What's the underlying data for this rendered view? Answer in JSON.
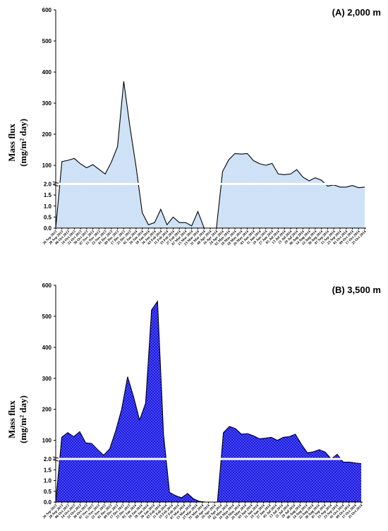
{
  "chart_data": [
    {
      "type": "area",
      "title": "(A) 2,000 m",
      "ylabel_line1": "Mass flux",
      "ylabel_line2": "(mg/m² day)",
      "fill_color": "#c9dff5",
      "stroke_color": "#000000",
      "upper_ticks": [
        "100",
        "200",
        "300",
        "400",
        "500",
        "600"
      ],
      "lower_ticks": [
        "0.0",
        "0.5",
        "1.0",
        "1.5",
        "2.0"
      ],
      "upper_ylim": [
        40,
        600
      ],
      "lower_ylim": [
        0,
        2.0
      ],
      "x": [
        "20 Sep 2013",
        "28 Sep 2013",
        "06 Oct 2013",
        "14 Oct 2013",
        "22 Oct 2013",
        "30 Oct 2013",
        "07 Nov 2013",
        "15 Nov 2013",
        "23 Nov 2013",
        "01 Dec 2013",
        "09 Dec 2013",
        "17 Dec 2013",
        "25 Dec 2013",
        "02 Jan 2014",
        "10 Jan 2014",
        "18 Jan 2014",
        "26 Jan 2014",
        "03 Feb 2014",
        "11 Feb 2014",
        "19 Feb 2014",
        "27 Feb 2014",
        "07 Mar 2014",
        "15 Mar 2014",
        "23 Mar 2014",
        "31 Mar 2014",
        "08 Apr 2014",
        "16 Apr 2014",
        "24 Apr 2014",
        "02 May 2014",
        "10 May 2014",
        "18 May 2014",
        "26 May 2014",
        "03 Jun 2014",
        "11 Jun 2014",
        "19 Jun 2014",
        "27 Jun 2014",
        "05 Jul 2014",
        "13 Jul 2014",
        "21 Jul 2014",
        "29 Jul 2014",
        "06 Aug 2014",
        "14 Aug 2014",
        "22 Aug 2014",
        "30 Aug 2014",
        "07 Sep 2014",
        "15 Sep 2014",
        "23 Sep 2014",
        "01 Oct 2014",
        "09 Oct 2014",
        "17 Oct 2014",
        "25 Oct 2014"
      ],
      "tick_labels": [
        "20 Sep 2013",
        "28 Sep 2013",
        "06 Oct 2013",
        "14 Oct 2013",
        "22 Oct 2013",
        "30 Oct 2013",
        "07 Nov 2013",
        "15 Nov 2013",
        "23 Nov 2013",
        "01 Dec 2013",
        "09 Dec 2013",
        "17 Dec 2013",
        "25 Dec 2013",
        "02 Jan 2014",
        "10 Jan 2014",
        "18 Jan 2014",
        "26 Jan 2014",
        "03 Feb 2014",
        "11 Feb 2014",
        "19 Feb 2014",
        "27 Feb 2014",
        "07 Mar 2014",
        "15 Mar 2014",
        "23 Mar 2014",
        "31 Mar 2014",
        "08 Apr 2014",
        "16 Apr 2014",
        "24 Apr 2014",
        "02 May 2014",
        "10 May 2014",
        "18 May 2014",
        "26 May 2014",
        "03 Jun 2014",
        "11 Jun 2014",
        "19 Jun 2014",
        "27 Jun 2014",
        "05 Jul 2014",
        "13 Jul 2014",
        "21 Jul 2014",
        "29 Jul 2014",
        "06 Aug 2014",
        "14 Aug 2014",
        "22 Aug 2014",
        "30 Aug 2014",
        "07 Sep 2014",
        "15 Sep 2014",
        "23 Sep 2014",
        "01 Oct 2014",
        "09 Oct 2014",
        "17 Oct 2014",
        "25 Oct 2014"
      ],
      "segments": [
        {
          "values": [
            0,
            112,
            116,
            122,
            105,
            92,
            102,
            87,
            72,
            110,
            160,
            370,
            225,
            95,
            0.7,
            0.15,
            0.25,
            0.85,
            0.15,
            0.5,
            0.25,
            0.25,
            0.1,
            0.75,
            0.02
          ]
        },
        {
          "values": [
            0,
            0,
            80,
            118,
            138,
            136,
            138,
            115,
            105,
            100,
            106,
            72,
            70,
            72,
            86,
            62,
            50,
            60,
            52,
            33,
            37,
            30,
            30,
            35,
            28,
            30
          ]
        }
      ]
    },
    {
      "type": "area",
      "title": "(B) 3,500 m",
      "ylabel_line1": "Mass flux",
      "ylabel_line2": "(mg/m² day)",
      "fill_color": "#1a1ae6",
      "stroke_color": "#000000",
      "upper_ticks": [
        "100",
        "200",
        "300",
        "400",
        "500",
        "600"
      ],
      "lower_ticks": [
        "0.0",
        "0.5",
        "1.0",
        "1.5",
        "2.0"
      ],
      "upper_ylim": [
        40,
        600
      ],
      "lower_ylim": [
        0,
        2.0
      ],
      "x": [
        "20 Sep 2013",
        "28 Sep 2013",
        "06 Oct 2013",
        "14 Oct 2013",
        "22 Oct 2013",
        "30 Oct 2013",
        "07 Nov 2013",
        "15 Nov 2013",
        "23 Nov 2013",
        "01 Dec 2013",
        "09 Dec 2013",
        "17 Dec 2013",
        "25 Dec 2013",
        "02 Jan 2014",
        "10 Jan 2014",
        "18 Jan 2014",
        "26 Jan 2014",
        "03 Feb 2014",
        "11 Feb 2014",
        "19 Feb 2014",
        "27 Feb 2014",
        "07 Mar 2014",
        "15 Mar 2014",
        "23 Mar 2014",
        "31 Mar 2014",
        "08 Apr 2014",
        "16 Apr 2014",
        "24 Apr 2014",
        "02 May 2014",
        "10 May 2014",
        "18 May 2014",
        "26 May 2014",
        "03 Jun 2014",
        "11 Jun 2014",
        "19 Jun 2014",
        "27 Jun 2014",
        "05 Jul 2014",
        "13 Jul 2014",
        "21 Jul 2014",
        "29 Jul 2014",
        "06 Aug 2014",
        "14 Aug 2014",
        "22 Aug 2014",
        "30 Aug 2014",
        "07 Sep 2014",
        "15 Sep 2014",
        "23 Sep 2014",
        "01 Oct 2014",
        "09 Oct 2014",
        "17 Oct 2014",
        "25 Oct 2014"
      ],
      "tick_labels": [
        "20 Sep 2013",
        "28 Sep 2013",
        "06 Oct 2013",
        "14 Oct 2013",
        "22 Oct 2013",
        "30 Oct 2013",
        "07 Nov 2013",
        "15 Nov 2013",
        "23 Nov 2013",
        "01 Dec 2013",
        "09 Dec 2013",
        "17 Dec 2013",
        "25 Dec 2013",
        "02 Jan 2014",
        "10 Jan 2014",
        "18 Jan 2014",
        "26 Jan 2014",
        "03 Feb 2014",
        "11 Feb 2014",
        "19 Feb 2014",
        "27 Feb 2014",
        "07 Mar 2014",
        "15 Mar 2014",
        "23 Mar 2014",
        "31 Mar 2014",
        "08 Apr 2014",
        "16 Apr 2014",
        "24 Apr 2014",
        "02 May 2014",
        "10 May 2014",
        "18 May 2014",
        "26 May 2014",
        "03 Jun 2014",
        "11 Jun 2014",
        "19 Jun 2014",
        "27 Jun 2014",
        "05 Jul 2014",
        "13 Jul 2014",
        "21 Jul 2014",
        "29 Jul 2014",
        "06 Aug 2014",
        "14 Aug 2014",
        "22 Aug 2014",
        "30 Aug 2014",
        "07 Sep 2014",
        "15 Sep 2014",
        "23 Sep 2014",
        "01 Oct 2014",
        "09 Oct 2014",
        "17 Oct 2014",
        "25 Oct 2014"
      ],
      "segments": [
        {
          "values": [
            0,
            110,
            125,
            112,
            128,
            92,
            90,
            70,
            52,
            72,
            130,
            200,
            305,
            240,
            165,
            220,
            520,
            548,
            120,
            0.45,
            0.3,
            0.2,
            0.4,
            0.15,
            0.03,
            0
          ]
        },
        {
          "values": [
            0,
            0,
            125,
            145,
            138,
            120,
            122,
            115,
            105,
            107,
            110,
            100,
            110,
            112,
            120,
            88,
            60,
            63,
            70,
            62,
            40,
            55,
            30,
            30,
            27,
            25
          ]
        }
      ]
    }
  ]
}
